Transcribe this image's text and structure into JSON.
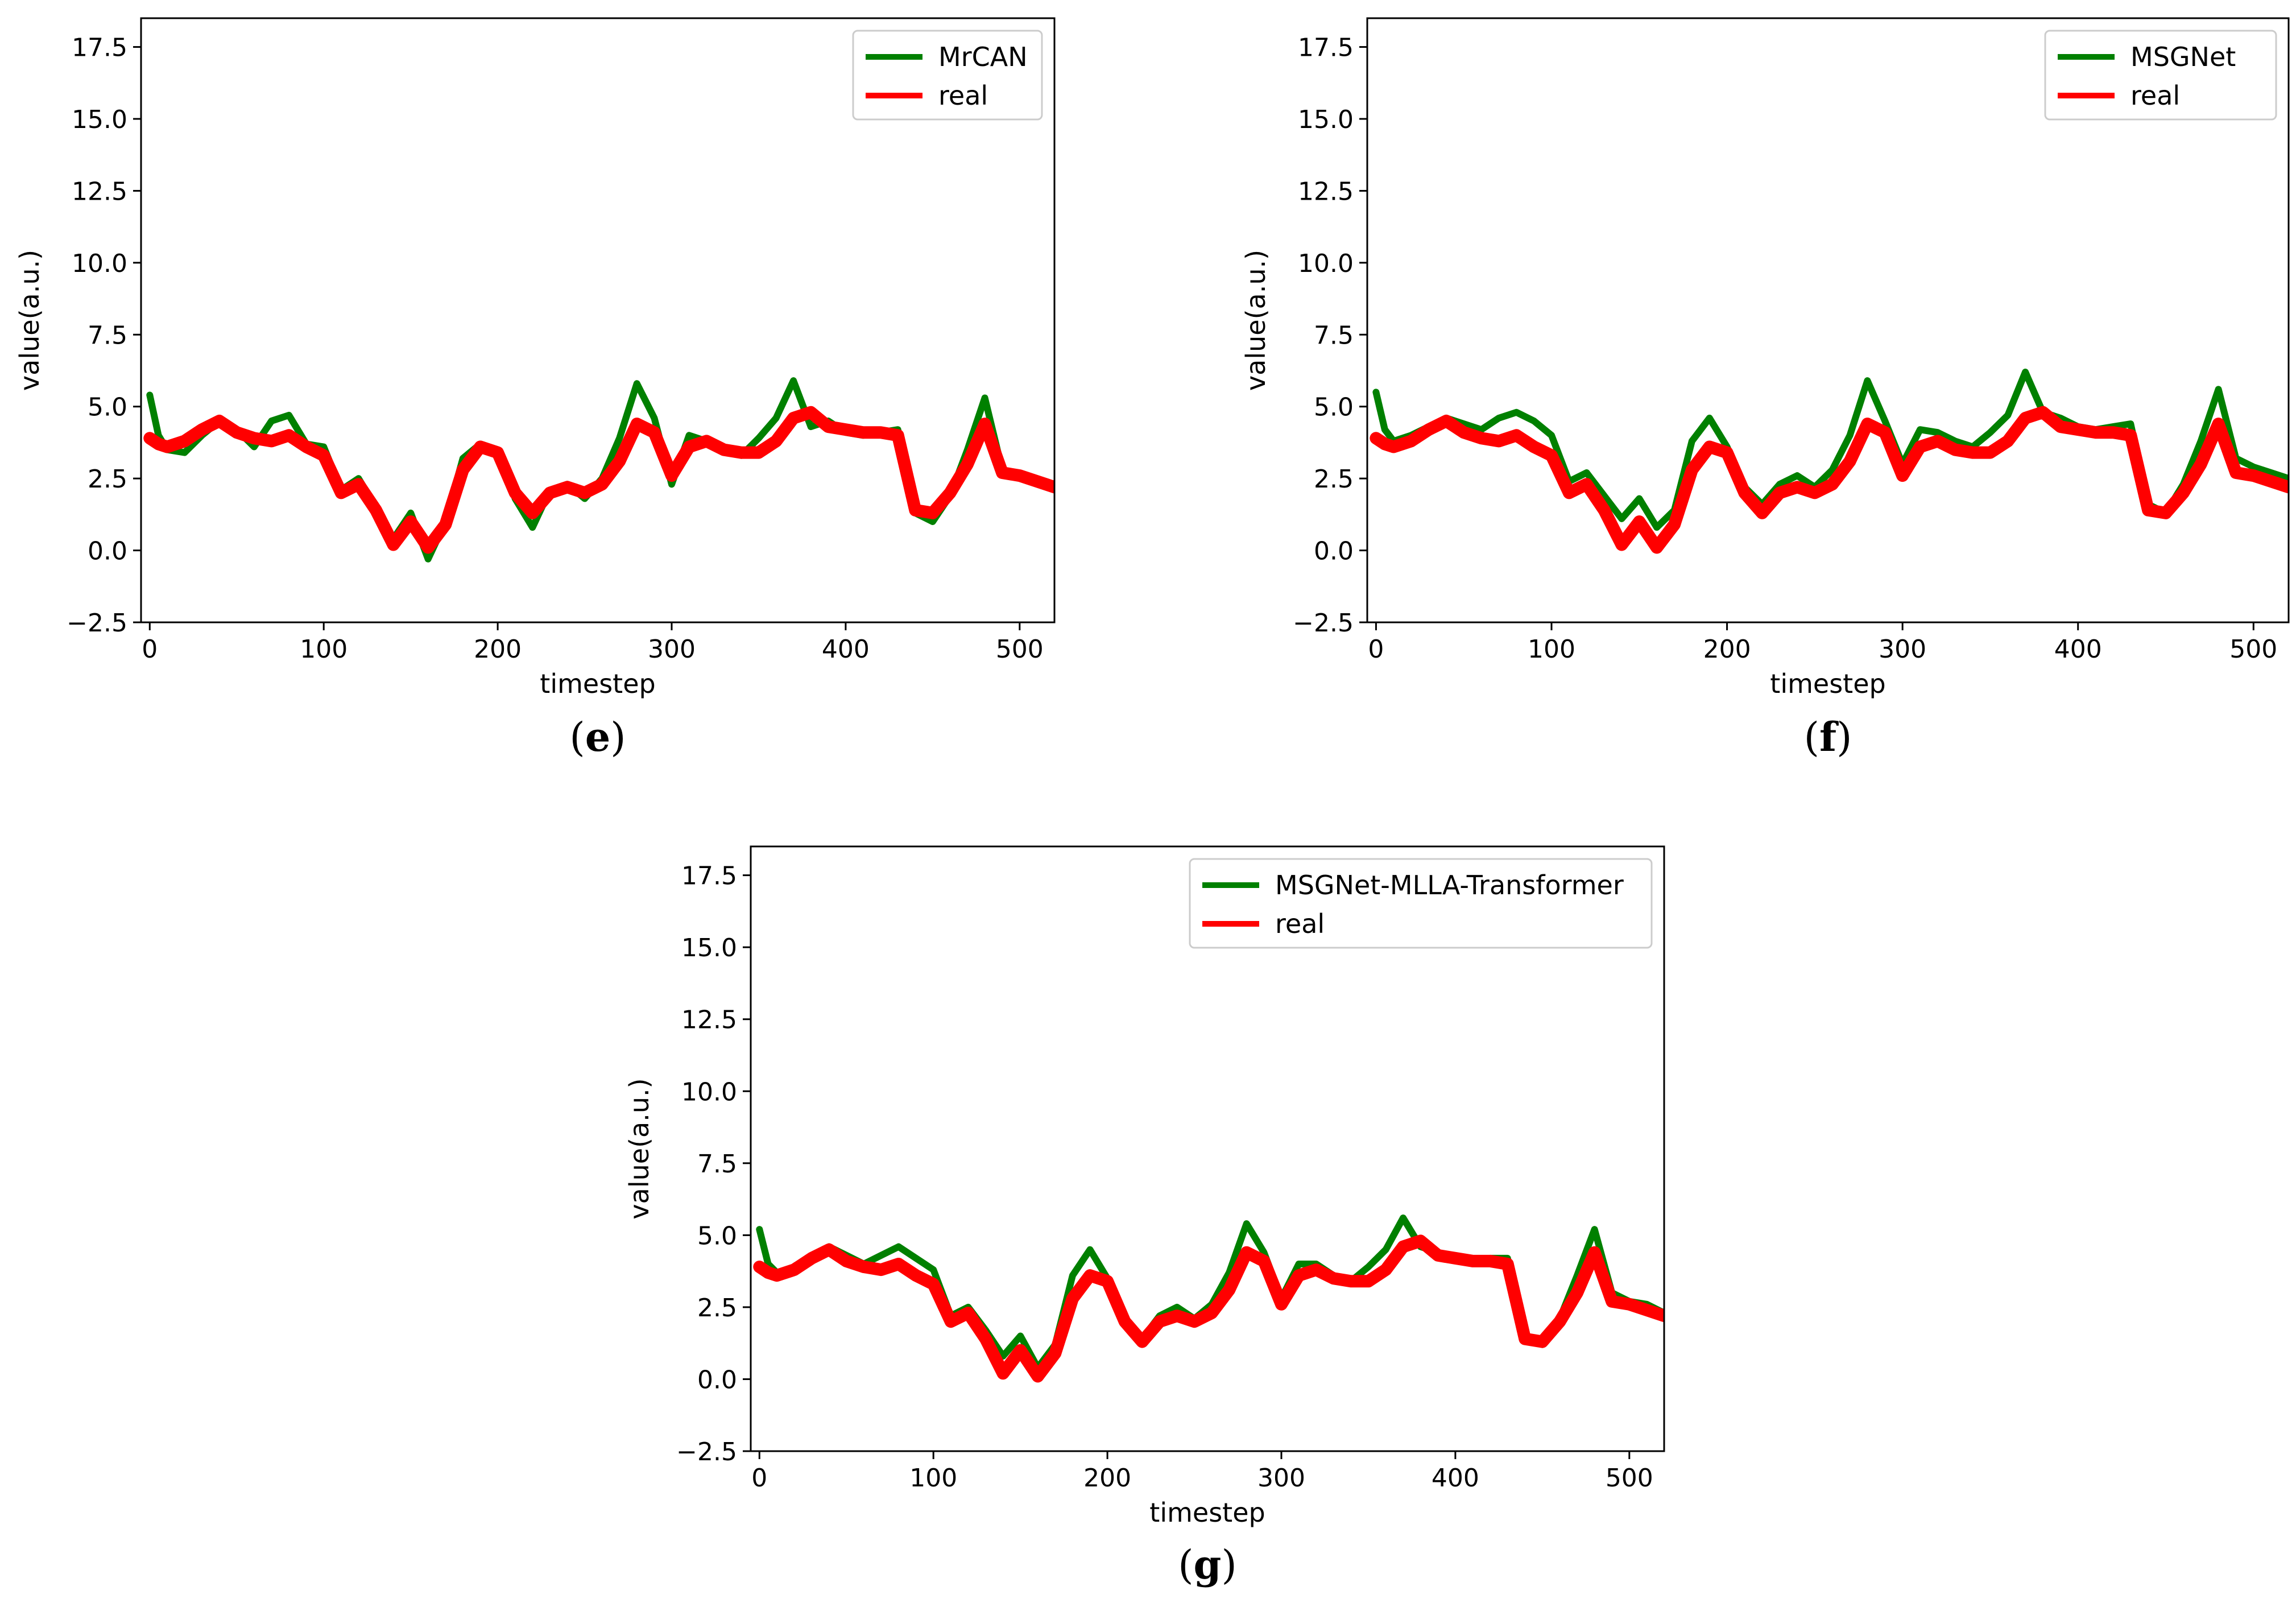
{
  "colors": {
    "predicted": "#008000",
    "real": "#ff0000",
    "axis": "#000000",
    "legend_border": "#cccccc"
  },
  "chart_data": [
    {
      "type": "line",
      "caption_letter": "e",
      "xlabel": "timestep",
      "ylabel": "value(a.u.)",
      "xlim": [
        -5,
        520
      ],
      "ylim": [
        -2.5,
        18.5
      ],
      "xticks": [
        0,
        100,
        200,
        300,
        400,
        500
      ],
      "xtick_labels": [
        "0",
        "100",
        "200",
        "300",
        "400",
        "500"
      ],
      "yticks": [
        -2.5,
        0.0,
        2.5,
        5.0,
        7.5,
        10.0,
        12.5,
        15.0,
        17.5
      ],
      "ytick_labels": [
        "−2.5",
        "0.0",
        "2.5",
        "5.0",
        "7.5",
        "10.0",
        "12.5",
        "15.0",
        "17.5"
      ],
      "legend_position": "top-right",
      "series": [
        {
          "name": "MrCAN",
          "role": "predicted",
          "x": [
            0,
            5,
            10,
            20,
            30,
            40,
            50,
            60,
            70,
            80,
            90,
            100,
            110,
            120,
            130,
            140,
            150,
            160,
            170,
            180,
            190,
            200,
            210,
            220,
            230,
            240,
            250,
            260,
            270,
            280,
            290,
            300,
            310,
            320,
            330,
            340,
            350,
            360,
            370,
            380,
            390,
            400,
            410,
            420,
            430,
            440,
            450,
            460,
            470,
            480,
            490,
            500,
            510,
            520
          ],
          "y": [
            5.4,
            4.0,
            3.5,
            3.4,
            4.0,
            4.5,
            4.2,
            3.6,
            4.5,
            4.7,
            3.7,
            3.6,
            2.1,
            2.5,
            1.5,
            0.4,
            1.3,
            -0.3,
            1.0,
            3.2,
            3.7,
            3.5,
            1.8,
            0.8,
            2.1,
            2.3,
            1.8,
            2.5,
            3.9,
            5.8,
            4.6,
            2.3,
            4.0,
            3.8,
            3.5,
            3.3,
            3.9,
            4.6,
            5.9,
            4.3,
            4.5,
            4.1,
            4.0,
            4.1,
            4.2,
            1.3,
            1.0,
            1.9,
            3.5,
            5.3,
            2.8,
            2.6,
            2.4,
            2.1
          ]
        },
        {
          "name": "real",
          "role": "real",
          "x": [
            0,
            5,
            10,
            20,
            30,
            40,
            50,
            60,
            70,
            80,
            90,
            100,
            110,
            120,
            130,
            140,
            150,
            160,
            170,
            180,
            190,
            200,
            210,
            220,
            230,
            240,
            250,
            260,
            270,
            280,
            290,
            300,
            310,
            320,
            330,
            340,
            350,
            360,
            370,
            380,
            390,
            400,
            410,
            420,
            430,
            440,
            450,
            460,
            470,
            480,
            490,
            500,
            510,
            520
          ],
          "y": [
            3.9,
            3.7,
            3.6,
            3.8,
            4.2,
            4.5,
            4.1,
            3.9,
            3.8,
            4.0,
            3.6,
            3.3,
            2.0,
            2.3,
            1.4,
            0.2,
            1.0,
            0.1,
            0.9,
            2.8,
            3.6,
            3.4,
            2.0,
            1.3,
            2.0,
            2.2,
            2.0,
            2.3,
            3.1,
            4.4,
            4.1,
            2.6,
            3.6,
            3.8,
            3.5,
            3.4,
            3.4,
            3.8,
            4.6,
            4.8,
            4.3,
            4.2,
            4.1,
            4.1,
            4.0,
            1.4,
            1.3,
            2.0,
            3.0,
            4.4,
            2.7,
            2.6,
            2.4,
            2.2
          ]
        }
      ]
    },
    {
      "type": "line",
      "caption_letter": "f",
      "xlabel": "timestep",
      "ylabel": "value(a.u.)",
      "xlim": [
        -5,
        520
      ],
      "ylim": [
        -2.5,
        18.5
      ],
      "xticks": [
        0,
        100,
        200,
        300,
        400,
        500
      ],
      "xtick_labels": [
        "0",
        "100",
        "200",
        "300",
        "400",
        "500"
      ],
      "yticks": [
        -2.5,
        0.0,
        2.5,
        5.0,
        7.5,
        10.0,
        12.5,
        15.0,
        17.5
      ],
      "ytick_labels": [
        "−2.5",
        "0.0",
        "2.5",
        "5.0",
        "7.5",
        "10.0",
        "12.5",
        "15.0",
        "17.5"
      ],
      "legend_position": "top-right",
      "series": [
        {
          "name": "MSGNet",
          "role": "predicted",
          "x": [
            0,
            5,
            10,
            20,
            30,
            40,
            50,
            60,
            70,
            80,
            90,
            100,
            110,
            120,
            130,
            140,
            150,
            160,
            170,
            180,
            190,
            200,
            210,
            220,
            230,
            240,
            250,
            260,
            270,
            280,
            290,
            300,
            310,
            320,
            330,
            340,
            350,
            360,
            370,
            380,
            390,
            400,
            410,
            420,
            430,
            440,
            450,
            460,
            470,
            480,
            490,
            500,
            510,
            520
          ],
          "y": [
            5.5,
            4.2,
            3.8,
            4.0,
            4.3,
            4.6,
            4.4,
            4.2,
            4.6,
            4.8,
            4.5,
            4.0,
            2.4,
            2.7,
            1.9,
            1.1,
            1.8,
            0.8,
            1.4,
            3.8,
            4.6,
            3.6,
            2.2,
            1.6,
            2.3,
            2.6,
            2.2,
            2.8,
            4.0,
            5.9,
            4.5,
            3.0,
            4.2,
            4.1,
            3.8,
            3.6,
            4.1,
            4.7,
            6.2,
            4.8,
            4.6,
            4.3,
            4.2,
            4.3,
            4.4,
            1.6,
            1.3,
            2.3,
            3.8,
            5.6,
            3.2,
            2.9,
            2.7,
            2.5
          ]
        },
        {
          "name": "real",
          "role": "real",
          "x": [
            0,
            5,
            10,
            20,
            30,
            40,
            50,
            60,
            70,
            80,
            90,
            100,
            110,
            120,
            130,
            140,
            150,
            160,
            170,
            180,
            190,
            200,
            210,
            220,
            230,
            240,
            250,
            260,
            270,
            280,
            290,
            300,
            310,
            320,
            330,
            340,
            350,
            360,
            370,
            380,
            390,
            400,
            410,
            420,
            430,
            440,
            450,
            460,
            470,
            480,
            490,
            500,
            510,
            520
          ],
          "y": [
            3.9,
            3.7,
            3.6,
            3.8,
            4.2,
            4.5,
            4.1,
            3.9,
            3.8,
            4.0,
            3.6,
            3.3,
            2.0,
            2.3,
            1.4,
            0.2,
            1.0,
            0.1,
            0.9,
            2.8,
            3.6,
            3.4,
            2.0,
            1.3,
            2.0,
            2.2,
            2.0,
            2.3,
            3.1,
            4.4,
            4.1,
            2.6,
            3.6,
            3.8,
            3.5,
            3.4,
            3.4,
            3.8,
            4.6,
            4.8,
            4.3,
            4.2,
            4.1,
            4.1,
            4.0,
            1.4,
            1.3,
            2.0,
            3.0,
            4.4,
            2.7,
            2.6,
            2.4,
            2.2
          ]
        }
      ]
    },
    {
      "type": "line",
      "caption_letter": "g",
      "xlabel": "timestep",
      "ylabel": "value(a.u.)",
      "xlim": [
        -5,
        520
      ],
      "ylim": [
        -2.5,
        18.5
      ],
      "xticks": [
        0,
        100,
        200,
        300,
        400,
        500
      ],
      "xtick_labels": [
        "0",
        "100",
        "200",
        "300",
        "400",
        "500"
      ],
      "yticks": [
        -2.5,
        0.0,
        2.5,
        5.0,
        7.5,
        10.0,
        12.5,
        15.0,
        17.5
      ],
      "ytick_labels": [
        "−2.5",
        "0.0",
        "2.5",
        "5.0",
        "7.5",
        "10.0",
        "12.5",
        "15.0",
        "17.5"
      ],
      "legend_position": "top-right",
      "series": [
        {
          "name": "MSGNet-MLLA-Transformer",
          "role": "predicted",
          "x": [
            0,
            5,
            10,
            20,
            30,
            40,
            50,
            60,
            70,
            80,
            90,
            100,
            110,
            120,
            130,
            140,
            150,
            160,
            170,
            180,
            190,
            200,
            210,
            220,
            230,
            240,
            250,
            260,
            270,
            280,
            290,
            300,
            310,
            320,
            330,
            340,
            350,
            360,
            370,
            380,
            390,
            400,
            410,
            420,
            430,
            440,
            450,
            460,
            470,
            480,
            490,
            500,
            510,
            520
          ],
          "y": [
            5.2,
            4.0,
            3.7,
            3.8,
            4.2,
            4.6,
            4.3,
            4.0,
            4.3,
            4.6,
            4.2,
            3.8,
            2.2,
            2.5,
            1.7,
            0.8,
            1.5,
            0.4,
            1.2,
            3.6,
            4.5,
            3.5,
            2.1,
            1.4,
            2.2,
            2.5,
            2.1,
            2.6,
            3.7,
            5.4,
            4.4,
            2.8,
            4.0,
            4.0,
            3.6,
            3.4,
            3.9,
            4.5,
            5.6,
            4.6,
            4.4,
            4.2,
            4.1,
            4.2,
            4.2,
            1.4,
            1.2,
            2.1,
            3.6,
            5.2,
            3.0,
            2.7,
            2.6,
            2.3
          ]
        },
        {
          "name": "real",
          "role": "real",
          "x": [
            0,
            5,
            10,
            20,
            30,
            40,
            50,
            60,
            70,
            80,
            90,
            100,
            110,
            120,
            130,
            140,
            150,
            160,
            170,
            180,
            190,
            200,
            210,
            220,
            230,
            240,
            250,
            260,
            270,
            280,
            290,
            300,
            310,
            320,
            330,
            340,
            350,
            360,
            370,
            380,
            390,
            400,
            410,
            420,
            430,
            440,
            450,
            460,
            470,
            480,
            490,
            500,
            510,
            520
          ],
          "y": [
            3.9,
            3.7,
            3.6,
            3.8,
            4.2,
            4.5,
            4.1,
            3.9,
            3.8,
            4.0,
            3.6,
            3.3,
            2.0,
            2.3,
            1.4,
            0.2,
            1.0,
            0.1,
            0.9,
            2.8,
            3.6,
            3.4,
            2.0,
            1.3,
            2.0,
            2.2,
            2.0,
            2.3,
            3.1,
            4.4,
            4.1,
            2.6,
            3.6,
            3.8,
            3.5,
            3.4,
            3.4,
            3.8,
            4.6,
            4.8,
            4.3,
            4.2,
            4.1,
            4.1,
            4.0,
            1.4,
            1.3,
            2.0,
            3.0,
            4.4,
            2.7,
            2.6,
            2.4,
            2.2
          ]
        }
      ]
    }
  ]
}
